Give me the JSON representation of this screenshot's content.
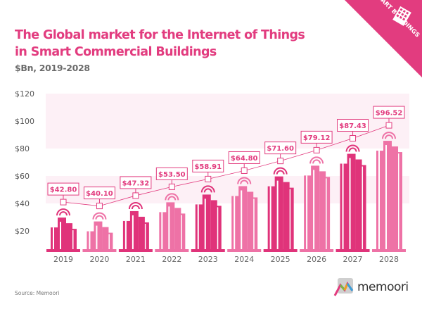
{
  "header": {
    "title_line1": "The Global market for the Internet of Things",
    "title_line2": "in Smart Commercial Buildings",
    "subtitle": "$Bn, 2019-2028",
    "badge": "SMART BUILDINGS"
  },
  "footer": {
    "source": "Source: Memoori",
    "logo": "memoori"
  },
  "colors": {
    "accent": "#e23c7f",
    "dark_bar": "#e0337a",
    "light_bar": "#ee72a6",
    "band": "#fdf0f6"
  },
  "chart_data": {
    "type": "bar",
    "title": "The Global market for the Internet of Things in Smart Commercial Buildings",
    "subtitle": "$Bn, 2019-2028",
    "categories": [
      "2019",
      "2020",
      "2021",
      "2022",
      "2023",
      "2024",
      "2025",
      "2026",
      "2027",
      "2028"
    ],
    "values": [
      42.8,
      40.1,
      47.32,
      53.5,
      58.91,
      64.8,
      71.6,
      79.12,
      87.43,
      96.52
    ],
    "data_labels": [
      "$42.80",
      "$40.10",
      "$47.32",
      "$53.50",
      "$58.91",
      "$64.80",
      "$71.60",
      "$79.12",
      "$87.43",
      "$96.52"
    ],
    "yticks": [
      "$20",
      "$40",
      "$60",
      "$80",
      "$100",
      "$120"
    ],
    "ylim": [
      0,
      120
    ],
    "grid": "alternating bands",
    "legend": "none"
  }
}
